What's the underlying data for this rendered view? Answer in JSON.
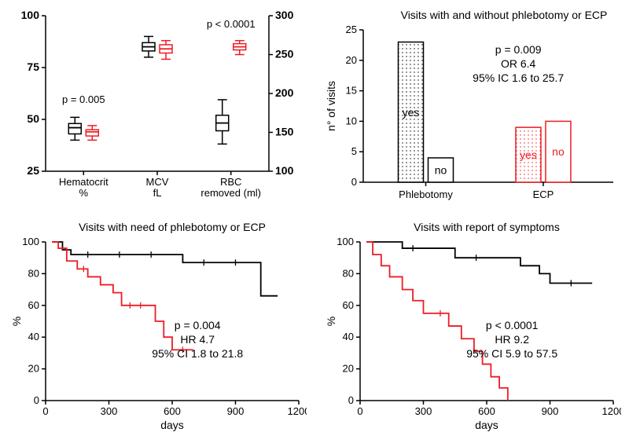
{
  "colors": {
    "black": "#000000",
    "red": "#ed1c24",
    "white": "#ffffff",
    "dotFill": "#f5f5f5"
  },
  "panelA": {
    "type": "boxplot",
    "leftAxis": {
      "min": 25,
      "max": 100,
      "ticks": [
        25,
        50,
        75,
        100
      ]
    },
    "rightAxis": {
      "min": 100,
      "max": 300,
      "ticks": [
        100,
        150,
        200,
        250,
        300
      ]
    },
    "groups": [
      {
        "label": "Hematocrit\n%",
        "axis": "left",
        "boxes": [
          {
            "color": "#000000",
            "q1": 43,
            "med": 46,
            "q3": 48,
            "lo": 40,
            "hi": 51
          },
          {
            "color": "#ed1c24",
            "q1": 42,
            "med": 44,
            "q3": 45,
            "lo": 40,
            "hi": 47
          }
        ],
        "p": "p = 0.005"
      },
      {
        "label": "MCV\nfL",
        "axis": "left",
        "boxes": [
          {
            "color": "#000000",
            "q1": 83,
            "med": 85,
            "q3": 87,
            "lo": 80,
            "hi": 90
          },
          {
            "color": "#ed1c24",
            "q1": 82,
            "med": 84,
            "q3": 86,
            "lo": 79,
            "hi": 88
          }
        ]
      },
      {
        "label": "RBC\nremoved (ml)",
        "axis": "right",
        "boxes": [
          {
            "color": "#000000",
            "q1": 152,
            "med": 162,
            "q3": 172,
            "lo": 135,
            "hi": 192
          },
          {
            "color": "#ed1c24",
            "q1": 256,
            "med": 260,
            "q3": 264,
            "lo": 250,
            "hi": 268
          }
        ],
        "p": "p < 0.0001"
      }
    ]
  },
  "panelB": {
    "type": "bar",
    "title": "Visits with and without phlebotomy or ECP",
    "yaxis": {
      "label": "n° of visits",
      "min": 0,
      "max": 25,
      "ticks": [
        0,
        5,
        10,
        15,
        20,
        25
      ]
    },
    "groups": [
      {
        "label": "Phlebotomy",
        "bars": [
          {
            "value": 23,
            "fill": "dots",
            "stroke": "#000000",
            "inner": "yes"
          },
          {
            "value": 4,
            "fill": "none",
            "stroke": "#000000",
            "inner": "no"
          }
        ]
      },
      {
        "label": "ECP",
        "bars": [
          {
            "value": 9,
            "fill": "reddots",
            "stroke": "#ed1c24",
            "inner": "yes"
          },
          {
            "value": 10,
            "fill": "none",
            "stroke": "#ed1c24",
            "inner": "no"
          }
        ]
      }
    ],
    "stats": [
      "p = 0.009",
      "OR 6.4",
      "95% IC 1.6 to 25.7"
    ]
  },
  "panelC": {
    "type": "survival",
    "title": "Visits with need of phlebotomy or ECP",
    "xaxis": {
      "label": "days",
      "min": 0,
      "max": 1200,
      "ticks": [
        0,
        300,
        600,
        900,
        1200
      ]
    },
    "yaxis": {
      "label": "%",
      "min": 0,
      "max": 100,
      "ticks": [
        0,
        20,
        40,
        60,
        80,
        100
      ]
    },
    "curves": {
      "black": [
        [
          30,
          100
        ],
        [
          80,
          95
        ],
        [
          120,
          92
        ],
        [
          600,
          92
        ],
        [
          650,
          87
        ],
        [
          1000,
          87
        ],
        [
          1020,
          66
        ],
        [
          1100,
          66
        ]
      ],
      "red": [
        [
          30,
          100
        ],
        [
          60,
          96
        ],
        [
          100,
          88
        ],
        [
          150,
          83
        ],
        [
          200,
          78
        ],
        [
          260,
          73
        ],
        [
          320,
          68
        ],
        [
          360,
          60
        ],
        [
          480,
          60
        ],
        [
          520,
          50
        ],
        [
          560,
          40
        ],
        [
          600,
          32
        ],
        [
          700,
          32
        ]
      ]
    },
    "ticks_black": [
      [
        200,
        92
      ],
      [
        350,
        92
      ],
      [
        500,
        92
      ],
      [
        750,
        87
      ],
      [
        900,
        87
      ]
    ],
    "ticks_red": [
      [
        180,
        83
      ],
      [
        400,
        60
      ],
      [
        450,
        60
      ],
      [
        650,
        32
      ]
    ],
    "stats": [
      "p = 0.004",
      "HR 4.7",
      "95% CI 1.8 to 21.8"
    ]
  },
  "panelD": {
    "type": "survival",
    "title": "Visits with report of symptoms",
    "xaxis": {
      "label": "days",
      "min": 0,
      "max": 1200,
      "ticks": [
        0,
        300,
        600,
        900,
        1200
      ]
    },
    "yaxis": {
      "label": "%",
      "min": 0,
      "max": 100,
      "ticks": [
        0,
        20,
        40,
        60,
        80,
        100
      ]
    },
    "curves": {
      "black": [
        [
          30,
          100
        ],
        [
          200,
          96
        ],
        [
          400,
          96
        ],
        [
          450,
          90
        ],
        [
          700,
          90
        ],
        [
          760,
          85
        ],
        [
          850,
          80
        ],
        [
          900,
          74
        ],
        [
          1100,
          74
        ]
      ],
      "red": [
        [
          30,
          100
        ],
        [
          60,
          92
        ],
        [
          100,
          85
        ],
        [
          140,
          78
        ],
        [
          200,
          70
        ],
        [
          250,
          63
        ],
        [
          300,
          55
        ],
        [
          360,
          55
        ],
        [
          420,
          47
        ],
        [
          480,
          39
        ],
        [
          540,
          31
        ],
        [
          580,
          23
        ],
        [
          620,
          15
        ],
        [
          660,
          8
        ],
        [
          700,
          0
        ]
      ]
    },
    "ticks_black": [
      [
        250,
        96
      ],
      [
        550,
        90
      ],
      [
        1000,
        74
      ]
    ],
    "ticks_red": [
      [
        380,
        55
      ]
    ],
    "stats": [
      "p < 0.0001",
      "HR 9.2",
      "95% CI 5.9 to 57.5"
    ]
  }
}
